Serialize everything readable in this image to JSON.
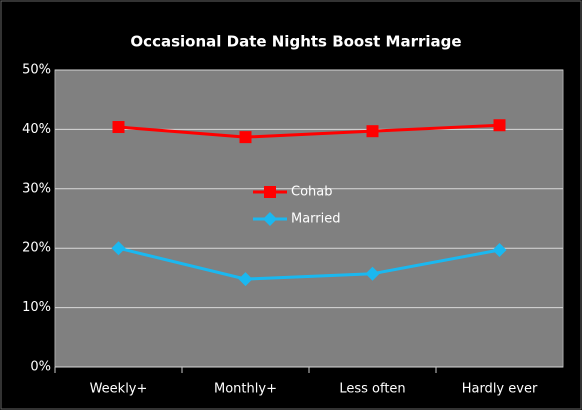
{
  "chart_data": {
    "type": "line",
    "title": "Occasional Date Nights Boost Marriage",
    "categories": [
      "Weekly+",
      "Monthly+",
      "Less often",
      "Hardly ever"
    ],
    "series": [
      {
        "name": "Cohab",
        "color": "#ff0000",
        "marker": "square",
        "values": [
          40.4,
          38.7,
          39.7,
          40.7
        ]
      },
      {
        "name": "Married",
        "color": "#1ab8f0",
        "marker": "diamond",
        "values": [
          20.0,
          14.8,
          15.7,
          19.7
        ]
      }
    ],
    "ylim": [
      0,
      50
    ],
    "yticks": [
      {
        "value": 0,
        "label": "0%"
      },
      {
        "value": 10,
        "label": "10%"
      },
      {
        "value": 20,
        "label": "20%"
      },
      {
        "value": 30,
        "label": "30%"
      },
      {
        "value": 40,
        "label": "40%"
      },
      {
        "value": 50,
        "label": "50%"
      }
    ],
    "grid": true,
    "legend": "center"
  }
}
